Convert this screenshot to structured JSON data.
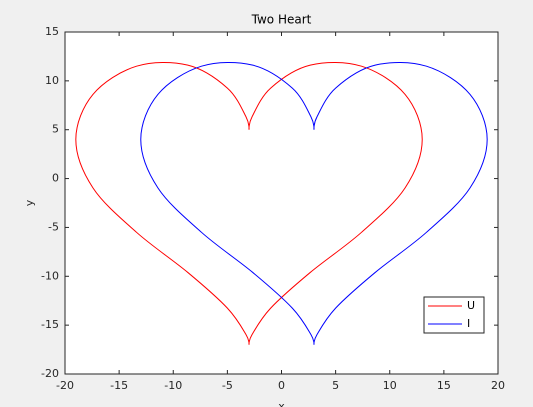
{
  "chart_data": {
    "type": "line",
    "title": "Two Heart",
    "xlabel": "x",
    "ylabel": "y",
    "xlim": [
      -20,
      20
    ],
    "ylim": [
      -20,
      15
    ],
    "xticks": [
      -20,
      -15,
      -10,
      -5,
      0,
      5,
      10,
      15,
      20
    ],
    "yticks": [
      -20,
      -15,
      -10,
      -5,
      0,
      5,
      10,
      15
    ],
    "legend": "southeast",
    "grid": false,
    "series": [
      {
        "name": "U",
        "color": "#ff0000",
        "x": [
          -3,
          -2.723,
          -1,
          2.657,
          7.392,
          11.419,
          13,
          11.419,
          7.392,
          2.657,
          -1,
          -2.723,
          -3,
          -3.277,
          -5,
          -8.657,
          -13.392,
          -17.419,
          -19,
          -17.419,
          -13.392,
          -8.657,
          -5,
          -3.277,
          -3
        ],
        "values": [
          5,
          6.313,
          9.258,
          11.607,
          11.5,
          8.609,
          4,
          -0.949,
          -5.5,
          -9.606,
          -13.258,
          -15.973,
          -17,
          -15.973,
          -13.258,
          -9.606,
          -5.5,
          -0.949,
          4,
          8.609,
          11.5,
          11.607,
          9.258,
          6.313,
          5
        ]
      },
      {
        "name": "I",
        "color": "#0000ff",
        "x": [
          3,
          3.277,
          5,
          8.657,
          13.392,
          17.419,
          19,
          17.419,
          13.392,
          8.657,
          5,
          3.277,
          3,
          2.723,
          1,
          -2.657,
          -7.392,
          -11.419,
          -13,
          -11.419,
          -7.392,
          -2.657,
          1,
          2.723,
          3
        ],
        "values": [
          5,
          6.313,
          9.258,
          11.607,
          11.5,
          8.609,
          4,
          -0.949,
          -5.5,
          -9.606,
          -13.258,
          -15.973,
          -17,
          -15.973,
          -13.258,
          -9.606,
          -5.5,
          -0.949,
          4,
          8.609,
          11.5,
          11.607,
          9.258,
          6.313,
          5
        ]
      }
    ]
  }
}
